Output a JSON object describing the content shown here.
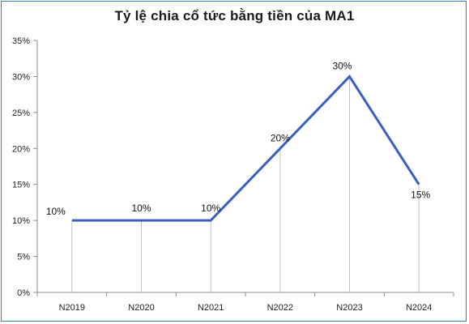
{
  "chart_data": {
    "type": "line",
    "title": "Tỷ lệ chia cổ tức bằng tiền của MA1",
    "xlabel": "",
    "ylabel": "",
    "categories": [
      "N2019",
      "N2020",
      "N2021",
      "N2022",
      "N2023",
      "N2024"
    ],
    "series": [
      {
        "values": [
          10,
          10,
          10,
          20,
          30,
          15
        ]
      }
    ],
    "data_labels": [
      "10%",
      "10%",
      "10%",
      "20%",
      "30%",
      "15%"
    ],
    "y_ticks": [
      "0%",
      "5%",
      "10%",
      "15%",
      "20%",
      "25%",
      "30%",
      "35%"
    ],
    "ylim": [
      0,
      35
    ],
    "line_color": "#3a5fbf",
    "drop_line_color": "#bfbfbf",
    "grid": false,
    "legend": "none"
  }
}
